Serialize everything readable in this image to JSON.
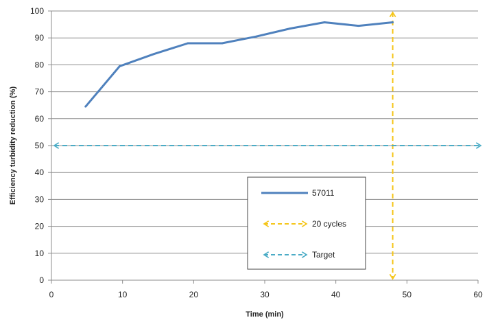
{
  "chart_data": {
    "type": "line",
    "title": "",
    "xlabel": "Time (min)",
    "ylabel": "Efficiency turbidity reduction (%)",
    "xlim": [
      0,
      60
    ],
    "ylim": [
      0,
      100
    ],
    "x_ticks": [
      0,
      10,
      20,
      30,
      40,
      50,
      60
    ],
    "y_ticks": [
      0,
      10,
      20,
      30,
      40,
      50,
      60,
      70,
      80,
      90,
      100
    ],
    "grid": "horizontal",
    "legend": "center-bottom",
    "series": [
      {
        "name": "57011",
        "color": "#4F81BD",
        "x": [
          4.8,
          9.6,
          14.4,
          19.2,
          24,
          28.8,
          33.6,
          38.4,
          43.2,
          48
        ],
        "y": [
          64.5,
          79.5,
          84,
          88,
          88,
          90.5,
          93.5,
          95.8,
          94.5,
          95.8
        ]
      }
    ],
    "reference_lines": [
      {
        "name": "20 cycles",
        "orientation": "vertical",
        "x": 48,
        "color": "#F5C518",
        "style": "dashed",
        "arrows": "both"
      },
      {
        "name": "Target",
        "orientation": "horizontal",
        "y": 50,
        "color": "#4BACC6",
        "style": "dashed",
        "arrows": "both"
      }
    ]
  }
}
